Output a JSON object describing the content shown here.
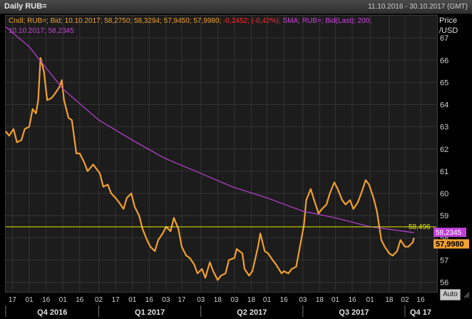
{
  "window": {
    "title": "Daily RUB=",
    "date_range": "11.10.2016 - 30.10.2017 (GMT)",
    "auto_button": "Auto"
  },
  "legend": {
    "candle_prefix": "Cndl; RUB=; Bid; 10.10.2017; 58,2750; 58,3294; 57,9450; 57,9980;",
    "candle_change": "-0,2452; (-0,42%);",
    "sma_line1": "SMA; RUB=; Bid(Last); 200;",
    "sma_line2": "10.10.2017; 58,2345"
  },
  "axis": {
    "price_label_1": "Price",
    "price_label_2": "/USD"
  },
  "colors": {
    "price": "#f0a030",
    "sma": "#c040d8",
    "hline": "#e8e800",
    "grid": "#333333",
    "background": "#1c1c1c"
  },
  "chart_data": {
    "type": "line",
    "title": "Daily RUB=",
    "ylabel": "Price /USD",
    "ylim": [
      55.6,
      68.0
    ],
    "yticks": [
      56,
      57,
      58,
      59,
      60,
      61,
      62,
      63,
      64,
      65,
      66,
      67
    ],
    "xticks": [
      {
        "date": "2016-10-17",
        "label": "17"
      },
      {
        "date": "2016-11-01",
        "label": "01"
      },
      {
        "date": "2016-11-16",
        "label": "16"
      },
      {
        "date": "2016-12-01",
        "label": "01"
      },
      {
        "date": "2016-12-16",
        "label": "16"
      },
      {
        "date": "2017-01-02",
        "label": "02"
      },
      {
        "date": "2017-01-17",
        "label": "17"
      },
      {
        "date": "2017-02-01",
        "label": "01"
      },
      {
        "date": "2017-02-16",
        "label": "16"
      },
      {
        "date": "2017-03-03",
        "label": "03"
      },
      {
        "date": "2017-03-17",
        "label": "17"
      },
      {
        "date": "2017-04-03",
        "label": "03"
      },
      {
        "date": "2017-04-18",
        "label": "18"
      },
      {
        "date": "2017-05-03",
        "label": "03"
      },
      {
        "date": "2017-05-18",
        "label": "18"
      },
      {
        "date": "2017-06-01",
        "label": "01"
      },
      {
        "date": "2017-06-16",
        "label": "16"
      },
      {
        "date": "2017-07-03",
        "label": "03"
      },
      {
        "date": "2017-07-18",
        "label": "18"
      },
      {
        "date": "2017-08-01",
        "label": "01"
      },
      {
        "date": "2017-08-16",
        "label": "16"
      },
      {
        "date": "2017-09-01",
        "label": "01"
      },
      {
        "date": "2017-09-18",
        "label": "18"
      },
      {
        "date": "2017-10-02",
        "label": "02"
      },
      {
        "date": "2017-10-16",
        "label": "16"
      }
    ],
    "quarters": [
      {
        "date": "2016-10-03",
        "label": "Q4 2016"
      },
      {
        "date": "2017-01-02",
        "label": "Q1 2017"
      },
      {
        "date": "2017-04-03",
        "label": "Q2 2017"
      },
      {
        "date": "2017-07-03",
        "label": "Q3 2017"
      },
      {
        "date": "2017-10-02",
        "label": "Q4 17"
      }
    ],
    "x_range": [
      "2016-10-11",
      "2017-10-30"
    ],
    "series": [
      {
        "kind": "price",
        "points": [
          [
            "2016-10-11",
            62.8
          ],
          [
            "2016-10-14",
            62.6
          ],
          [
            "2016-10-18",
            62.9
          ],
          [
            "2016-10-21",
            62.3
          ],
          [
            "2016-10-25",
            62.4
          ],
          [
            "2016-10-28",
            62.9
          ],
          [
            "2016-11-01",
            63.0
          ],
          [
            "2016-11-04",
            63.8
          ],
          [
            "2016-11-07",
            63.6
          ],
          [
            "2016-11-09",
            64.2
          ],
          [
            "2016-11-11",
            66.1
          ],
          [
            "2016-11-14",
            65.5
          ],
          [
            "2016-11-17",
            64.2
          ],
          [
            "2016-11-21",
            64.3
          ],
          [
            "2016-11-24",
            64.5
          ],
          [
            "2016-11-28",
            64.8
          ],
          [
            "2016-11-30",
            65.1
          ],
          [
            "2016-12-02",
            64.2
          ],
          [
            "2016-12-06",
            63.4
          ],
          [
            "2016-12-09",
            63.3
          ],
          [
            "2016-12-13",
            61.8
          ],
          [
            "2016-12-16",
            61.8
          ],
          [
            "2016-12-20",
            61.4
          ],
          [
            "2016-12-23",
            61.0
          ],
          [
            "2016-12-28",
            61.3
          ],
          [
            "2017-01-03",
            60.9
          ],
          [
            "2017-01-06",
            60.3
          ],
          [
            "2017-01-10",
            60.4
          ],
          [
            "2017-01-13",
            60.0
          ],
          [
            "2017-01-17",
            59.8
          ],
          [
            "2017-01-20",
            59.6
          ],
          [
            "2017-01-24",
            59.3
          ],
          [
            "2017-01-27",
            59.8
          ],
          [
            "2017-01-31",
            60.0
          ],
          [
            "2017-02-03",
            59.4
          ],
          [
            "2017-02-07",
            59.0
          ],
          [
            "2017-02-10",
            58.4
          ],
          [
            "2017-02-14",
            57.9
          ],
          [
            "2017-02-17",
            57.6
          ],
          [
            "2017-02-21",
            57.4
          ],
          [
            "2017-02-24",
            57.9
          ],
          [
            "2017-02-28",
            58.2
          ],
          [
            "2017-03-03",
            58.5
          ],
          [
            "2017-03-07",
            58.3
          ],
          [
            "2017-03-10",
            58.9
          ],
          [
            "2017-03-14",
            58.4
          ],
          [
            "2017-03-17",
            57.6
          ],
          [
            "2017-03-21",
            57.2
          ],
          [
            "2017-03-24",
            57.1
          ],
          [
            "2017-03-28",
            56.8
          ],
          [
            "2017-03-31",
            56.4
          ],
          [
            "2017-04-04",
            56.6
          ],
          [
            "2017-04-07",
            56.2
          ],
          [
            "2017-04-11",
            56.9
          ],
          [
            "2017-04-14",
            56.5
          ],
          [
            "2017-04-18",
            56.1
          ],
          [
            "2017-04-21",
            56.3
          ],
          [
            "2017-04-25",
            56.4
          ],
          [
            "2017-04-28",
            57.0
          ],
          [
            "2017-05-03",
            57.1
          ],
          [
            "2017-05-05",
            57.5
          ],
          [
            "2017-05-10",
            57.3
          ],
          [
            "2017-05-12",
            56.6
          ],
          [
            "2017-05-16",
            56.3
          ],
          [
            "2017-05-19",
            56.5
          ],
          [
            "2017-05-24",
            57.6
          ],
          [
            "2017-05-26",
            58.2
          ],
          [
            "2017-05-30",
            57.4
          ],
          [
            "2017-06-02",
            57.3
          ],
          [
            "2017-06-06",
            57.0
          ],
          [
            "2017-06-09",
            56.8
          ],
          [
            "2017-06-14",
            56.4
          ],
          [
            "2017-06-16",
            56.5
          ],
          [
            "2017-06-20",
            56.4
          ],
          [
            "2017-06-23",
            56.6
          ],
          [
            "2017-06-27",
            56.7
          ],
          [
            "2017-06-30",
            57.5
          ],
          [
            "2017-07-04",
            58.6
          ],
          [
            "2017-07-06",
            59.7
          ],
          [
            "2017-07-10",
            60.2
          ],
          [
            "2017-07-13",
            59.7
          ],
          [
            "2017-07-17",
            59.1
          ],
          [
            "2017-07-20",
            59.3
          ],
          [
            "2017-07-24",
            59.5
          ],
          [
            "2017-07-27",
            60.0
          ],
          [
            "2017-07-31",
            60.5
          ],
          [
            "2017-08-03",
            60.2
          ],
          [
            "2017-08-07",
            59.7
          ],
          [
            "2017-08-10",
            59.5
          ],
          [
            "2017-08-14",
            59.7
          ],
          [
            "2017-08-17",
            59.3
          ],
          [
            "2017-08-21",
            59.6
          ],
          [
            "2017-08-24",
            60.0
          ],
          [
            "2017-08-28",
            60.6
          ],
          [
            "2017-08-31",
            60.4
          ],
          [
            "2017-09-04",
            59.8
          ],
          [
            "2017-09-07",
            59.2
          ],
          [
            "2017-09-11",
            57.9
          ],
          [
            "2017-09-14",
            57.6
          ],
          [
            "2017-09-18",
            57.3
          ],
          [
            "2017-09-21",
            57.2
          ],
          [
            "2017-09-25",
            57.4
          ],
          [
            "2017-09-28",
            57.9
          ],
          [
            "2017-10-02",
            57.6
          ],
          [
            "2017-10-05",
            57.6
          ],
          [
            "2017-10-09",
            57.8
          ],
          [
            "2017-10-10",
            58.0
          ]
        ]
      },
      {
        "kind": "sma",
        "points": [
          [
            "2016-10-11",
            67.5
          ],
          [
            "2016-11-01",
            66.6
          ],
          [
            "2016-12-01",
            64.7
          ],
          [
            "2017-01-02",
            63.3
          ],
          [
            "2017-02-01",
            62.4
          ],
          [
            "2017-03-01",
            61.6
          ],
          [
            "2017-04-03",
            60.9
          ],
          [
            "2017-05-01",
            60.3
          ],
          [
            "2017-06-01",
            59.8
          ],
          [
            "2017-07-03",
            59.2
          ],
          [
            "2017-08-01",
            58.9
          ],
          [
            "2017-09-01",
            58.5
          ],
          [
            "2017-10-10",
            58.2345
          ]
        ]
      }
    ],
    "horizontal_line": 58.496,
    "labels": {
      "hline": "58,496",
      "sma_last": "58,2345",
      "price_last": "57,9980"
    }
  }
}
